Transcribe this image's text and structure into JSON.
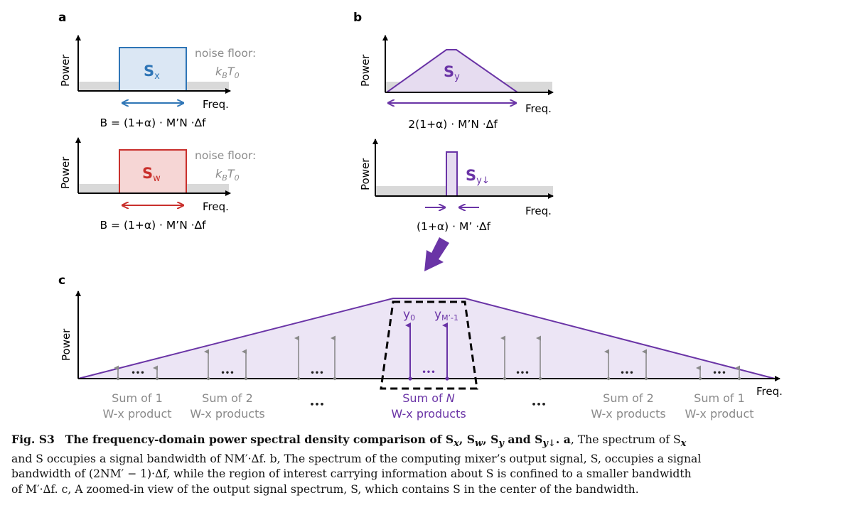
{
  "figure": {
    "panel_labels": {
      "a": "a",
      "b": "b",
      "c": "c"
    },
    "axis": {
      "power": "Power",
      "freq": "Freq."
    },
    "panel_a": {
      "top": {
        "signal": "S",
        "sub": "x",
        "noise_label": "noise floor:",
        "noise_sym": "k",
        "noise_sub1": "B",
        "noise_T": "T",
        "noise_sub2": "0",
        "bandwidth": "B = (1+α) · M’N ·∆f"
      },
      "bottom": {
        "signal": "S",
        "sub": "w",
        "noise_label": "noise floor:",
        "noise_sym": "k",
        "noise_sub1": "B",
        "noise_T": "T",
        "noise_sub2": "0",
        "bandwidth": "B = (1+α) · M’N ·∆f"
      }
    },
    "panel_b": {
      "top": {
        "signal": "S",
        "sub": "y",
        "bandwidth": "2(1+α) · M’N ·∆f"
      },
      "bottom": {
        "signal": "S",
        "sub": "y↓",
        "bandwidth": "(1+α) · M’ ·∆f"
      }
    },
    "panel_c": {
      "y0": "y",
      "y0_sub": "0",
      "ym": "y",
      "ym_sub": "M’-1",
      "dots": "•••",
      "labels": [
        {
          "l1": "Sum of 1",
          "l2": "W-x product"
        },
        {
          "l1": "Sum of 2",
          "l2": "W-x products"
        },
        {
          "l1": "•••",
          "l2": ""
        },
        {
          "l1": "Sum of ",
          "l1_italic": "N",
          "l2": "W-x products"
        },
        {
          "l1": "•••",
          "l2": ""
        },
        {
          "l1": "Sum of 2",
          "l2": "W-x products"
        },
        {
          "l1": "Sum of 1",
          "l2": "W-x product"
        }
      ]
    }
  },
  "caption": {
    "fig_label": "Fig. S3",
    "title": "The frequency-domain power spectral density comparison of S",
    "line1_rest": "The spectrum of S",
    "line2": "and S occupies a signal bandwidth of NM′·∆f. b, The spectrum of the computing mixer’s output signal, S, occupies a signal",
    "line3": "bandwidth of (2NM′ − 1)·∆f, while the region of interest carrying information about S is confined to a smaller bandwidth",
    "line4": "of M′·∆f. c, A zoomed-in view of the output signal spectrum, S, which contains S in the center of the bandwidth."
  },
  "colors": {
    "blue": "#2e75b6",
    "red": "#c9302c",
    "purple": "#6a34a6",
    "gray_floor": "#d9d9d9",
    "arrow_gray": "#8a8a8a"
  }
}
